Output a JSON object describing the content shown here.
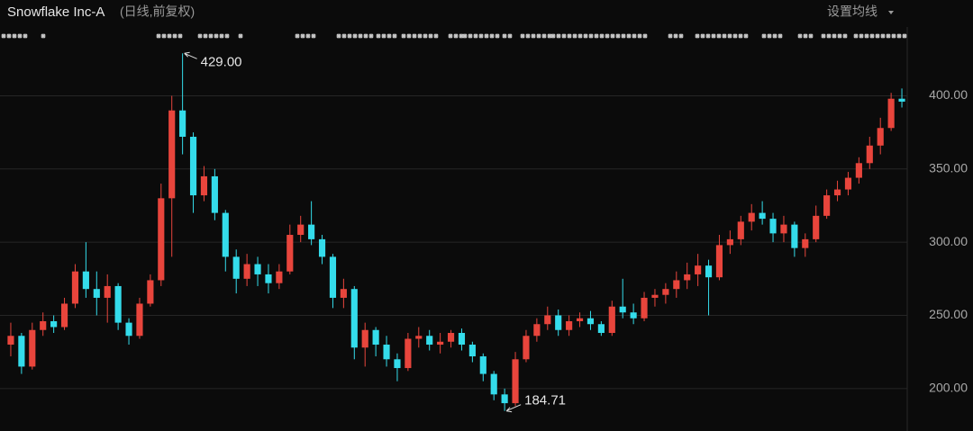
{
  "chart_data": {
    "type": "candlestick",
    "title": "Snowflake Inc-A",
    "subtitle": "(日线,前复权)",
    "menu_label": "设置均线",
    "up_color": "#e8453c",
    "down_color": "#34dceb",
    "open": [
      230,
      236,
      215,
      240,
      246,
      242,
      258,
      280,
      268,
      262,
      270,
      245,
      236,
      258,
      274,
      330,
      390,
      372,
      332,
      345,
      320,
      290,
      275,
      285,
      278,
      272,
      280,
      305,
      312,
      302,
      290,
      262,
      268,
      228,
      240,
      230,
      220,
      214,
      234,
      236,
      230,
      232,
      238,
      230,
      222,
      210,
      196,
      190,
      220,
      236,
      244,
      250,
      240,
      246,
      248,
      244,
      238,
      256,
      252,
      248,
      262,
      264,
      268,
      274,
      278,
      284,
      276,
      298,
      302,
      314,
      320,
      316,
      306,
      312,
      296,
      302,
      318,
      332,
      336,
      344,
      354,
      366,
      378,
      398
    ],
    "high": [
      245,
      238,
      245,
      252,
      250,
      262,
      285,
      300,
      280,
      278,
      272,
      248,
      262,
      278,
      340,
      400,
      429,
      375,
      352,
      350,
      322,
      295,
      292,
      290,
      285,
      285,
      312,
      318,
      328,
      305,
      292,
      275,
      270,
      245,
      242,
      236,
      224,
      238,
      242,
      240,
      238,
      240,
      241,
      232,
      224,
      212,
      200,
      225,
      240,
      248,
      256,
      254,
      250,
      252,
      253,
      246,
      260,
      275,
      258,
      266,
      268,
      272,
      280,
      286,
      292,
      288,
      305,
      308,
      318,
      326,
      328,
      320,
      318,
      314,
      306,
      325,
      336,
      342,
      348,
      358,
      372,
      385,
      402,
      405
    ],
    "low": [
      222,
      210,
      213,
      236,
      238,
      240,
      255,
      262,
      250,
      245,
      240,
      230,
      234,
      256,
      270,
      290,
      360,
      320,
      328,
      315,
      280,
      265,
      270,
      270,
      265,
      268,
      278,
      300,
      298,
      285,
      255,
      255,
      220,
      215,
      222,
      215,
      205,
      212,
      228,
      226,
      224,
      228,
      226,
      218,
      205,
      192,
      184.71,
      188,
      218,
      232,
      240,
      236,
      236,
      242,
      240,
      236,
      236,
      248,
      244,
      246,
      256,
      258,
      262,
      268,
      270,
      250,
      274,
      292,
      298,
      308,
      312,
      300,
      300,
      290,
      290,
      300,
      316,
      328,
      332,
      340,
      350,
      360,
      376,
      392
    ],
    "close": [
      236,
      215,
      240,
      246,
      242,
      258,
      280,
      268,
      262,
      270,
      245,
      236,
      258,
      274,
      330,
      390,
      372,
      332,
      345,
      320,
      290,
      275,
      285,
      278,
      272,
      280,
      305,
      312,
      302,
      290,
      262,
      268,
      228,
      240,
      230,
      220,
      214,
      234,
      236,
      230,
      232,
      238,
      230,
      222,
      210,
      196,
      190,
      220,
      236,
      244,
      250,
      240,
      246,
      248,
      244,
      238,
      256,
      252,
      248,
      262,
      264,
      268,
      274,
      278,
      284,
      276,
      298,
      302,
      314,
      320,
      316,
      306,
      312,
      296,
      302,
      318,
      332,
      336,
      344,
      354,
      366,
      378,
      398,
      396
    ],
    "high_label": {
      "value": 429,
      "label": "429.00"
    },
    "low_label": {
      "value": 184.71,
      "label": "184.71"
    },
    "ylim": [
      171,
      447
    ],
    "yticks": [
      {
        "value": 200,
        "label": "200.00"
      },
      {
        "value": 250,
        "label": "250.00"
      },
      {
        "value": 300,
        "label": "300.00"
      },
      {
        "value": 350,
        "label": "350.00"
      },
      {
        "value": 400,
        "label": "400.00"
      }
    ],
    "grid": true
  }
}
